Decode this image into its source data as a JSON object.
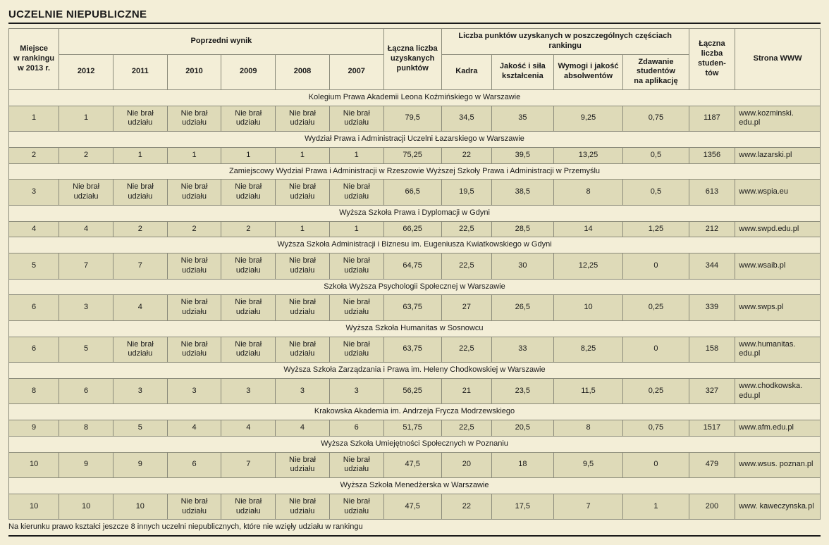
{
  "title": "UCZELNIE NIEPUBLICZNE",
  "colors": {
    "page_bg": "#f3eed7",
    "row_bg": "#dedab8",
    "border": "#8a8a7a",
    "text": "#1a1a1a"
  },
  "fonts": {
    "family": "Arial, Helvetica, sans-serif",
    "title_size": 15,
    "body_size": 11
  },
  "columns": {
    "rank_2013": "Miejsce w rankingu w 2013 r.",
    "prev_group": "Poprzedni wynik",
    "prev_years": [
      "2012",
      "2011",
      "2010",
      "2009",
      "2008",
      "2007"
    ],
    "total_points": "Łączna liczba uzyskanych punktów",
    "parts_group": "Liczba punktów uzyskanych w poszczególnych częściach rankingu",
    "parts": [
      "Kadra",
      "Jakość i siła kształcenia",
      "Wymogi i jakość absolwentów",
      "Zdawanie studentów na aplikację"
    ],
    "students": "Łączna liczba studen-tów",
    "www": "Strona WWW"
  },
  "nb": "Nie brał udziału",
  "rows": [
    {
      "name": "Kolegium Prawa Akademii Leona Koźmińskiego w Warszawie",
      "rank": "1",
      "prev": [
        "1",
        "NB",
        "NB",
        "NB",
        "NB",
        "NB"
      ],
      "total": "79,5",
      "parts": [
        "34,5",
        "35",
        "9,25",
        "0,75"
      ],
      "students": "1187",
      "www": "www.kozminski. edu.pl"
    },
    {
      "name": "Wydział Prawa i Administracji Uczelni Łazarskiego w Warszawie",
      "rank": "2",
      "prev": [
        "2",
        "1",
        "1",
        "1",
        "1",
        "1"
      ],
      "total": "75,25",
      "parts": [
        "22",
        "39,5",
        "13,25",
        "0,5"
      ],
      "students": "1356",
      "www": "www.lazarski.pl"
    },
    {
      "name": "Zamiejscowy Wydział Prawa i Administracji w Rzeszowie Wyższej Szkoły Prawa i Administracji w Przemyślu",
      "rank": "3",
      "prev": [
        "NB",
        "NB",
        "NB",
        "NB",
        "NB",
        "NB"
      ],
      "total": "66,5",
      "parts": [
        "19,5",
        "38,5",
        "8",
        "0,5"
      ],
      "students": "613",
      "www": "www.wspia.eu"
    },
    {
      "name": "Wyższa Szkoła Prawa i Dyplomacji w Gdyni",
      "rank": "4",
      "prev": [
        "4",
        "2",
        "2",
        "2",
        "1",
        "1"
      ],
      "total": "66,25",
      "parts": [
        "22,5",
        "28,5",
        "14",
        "1,25"
      ],
      "students": "212",
      "www": "www.swpd.edu.pl"
    },
    {
      "name": "Wyższa Szkoła Administracji i Biznesu im. Eugeniusza Kwiatkowskiego w Gdyni",
      "rank": "5",
      "prev": [
        "7",
        "7",
        "NB",
        "NB",
        "NB",
        "NB"
      ],
      "total": "64,75",
      "parts": [
        "22,5",
        "30",
        "12,25",
        "0"
      ],
      "students": "344",
      "www": "www.wsaib.pl"
    },
    {
      "name": "Szkoła Wyższa Psychologii Społecznej w Warszawie",
      "rank": "6",
      "prev": [
        "3",
        "4",
        "NB",
        "NB",
        "NB",
        "NB"
      ],
      "total": "63,75",
      "parts": [
        "27",
        "26,5",
        "10",
        "0,25"
      ],
      "students": "339",
      "www": "www.swps.pl"
    },
    {
      "name": "Wyższa Szkoła Humanitas w Sosnowcu",
      "rank": "6",
      "prev": [
        "5",
        "NB",
        "NB",
        "NB",
        "NB",
        "NB"
      ],
      "total": "63,75",
      "parts": [
        "22,5",
        "33",
        "8,25",
        "0"
      ],
      "students": "158",
      "www": "www.humanitas. edu.pl"
    },
    {
      "name": "Wyższa Szkoła Zarządzania i Prawa im. Heleny Chodkowskiej w Warszawie",
      "rank": "8",
      "prev": [
        "6",
        "3",
        "3",
        "3",
        "3",
        "3"
      ],
      "total": "56,25",
      "parts": [
        "21",
        "23,5",
        "11,5",
        "0,25"
      ],
      "students": "327",
      "www": "www.chodkowska. edu.pl"
    },
    {
      "name": "Krakowska Akademia im. Andrzeja Frycza Modrzewskiego",
      "rank": "9",
      "prev": [
        "8",
        "5",
        "4",
        "4",
        "4",
        "6"
      ],
      "total": "51,75",
      "parts": [
        "22,5",
        "20,5",
        "8",
        "0,75"
      ],
      "students": "1517",
      "www": "www.afm.edu.pl"
    },
    {
      "name": "Wyższa Szkoła Umiejętności Społecznych w Poznaniu",
      "rank": "10",
      "prev": [
        "9",
        "9",
        "6",
        "7",
        "NB",
        "NB"
      ],
      "total": "47,5",
      "parts": [
        "20",
        "18",
        "9,5",
        "0"
      ],
      "students": "479",
      "www": "www.wsus. poznan.pl"
    },
    {
      "name": "Wyższa Szkoła Menedżerska w Warszawie",
      "rank": "10",
      "prev": [
        "10",
        "10",
        "NB",
        "NB",
        "NB",
        "NB"
      ],
      "total": "47,5",
      "parts": [
        "22",
        "17,5",
        "7",
        "1"
      ],
      "students": "200",
      "www": "www. kaweczynska.pl"
    }
  ],
  "footnote": "Na kierunku prawo kształci jeszcze 8 innych uczelni niepublicznych, które nie wzięły udziału w rankingu"
}
